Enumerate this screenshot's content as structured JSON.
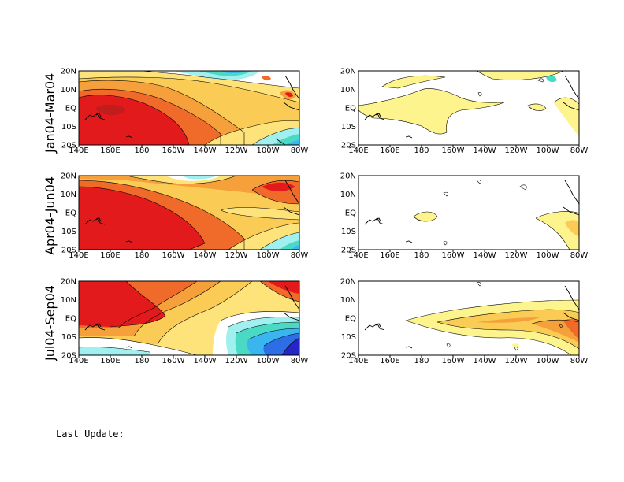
{
  "figure": {
    "row_labels": [
      "Jan04-Mar04",
      "Apr04-Jun04",
      "Jul04-Sep04"
    ],
    "x_ticks": [
      "140E",
      "160E",
      "180",
      "160W",
      "140W",
      "120W",
      "100W",
      "80W"
    ],
    "y_ticks": [
      "20N",
      "10N",
      "EQ",
      "10S",
      "20S"
    ],
    "footer": "Last Update:",
    "palette": {
      "dark_red": "#c31c1c",
      "red": "#e31a1c",
      "orange_red": "#f06a2a",
      "orange": "#f5a03a",
      "light_orange": "#fbcc55",
      "yellow": "#fde37a",
      "pale_yellow": "#fdf48e",
      "cyan": "#9ff0ee",
      "teal": "#4ad9c4",
      "sky": "#39b5f0",
      "blue": "#2d6ee6",
      "navy": "#2525c8"
    }
  }
}
